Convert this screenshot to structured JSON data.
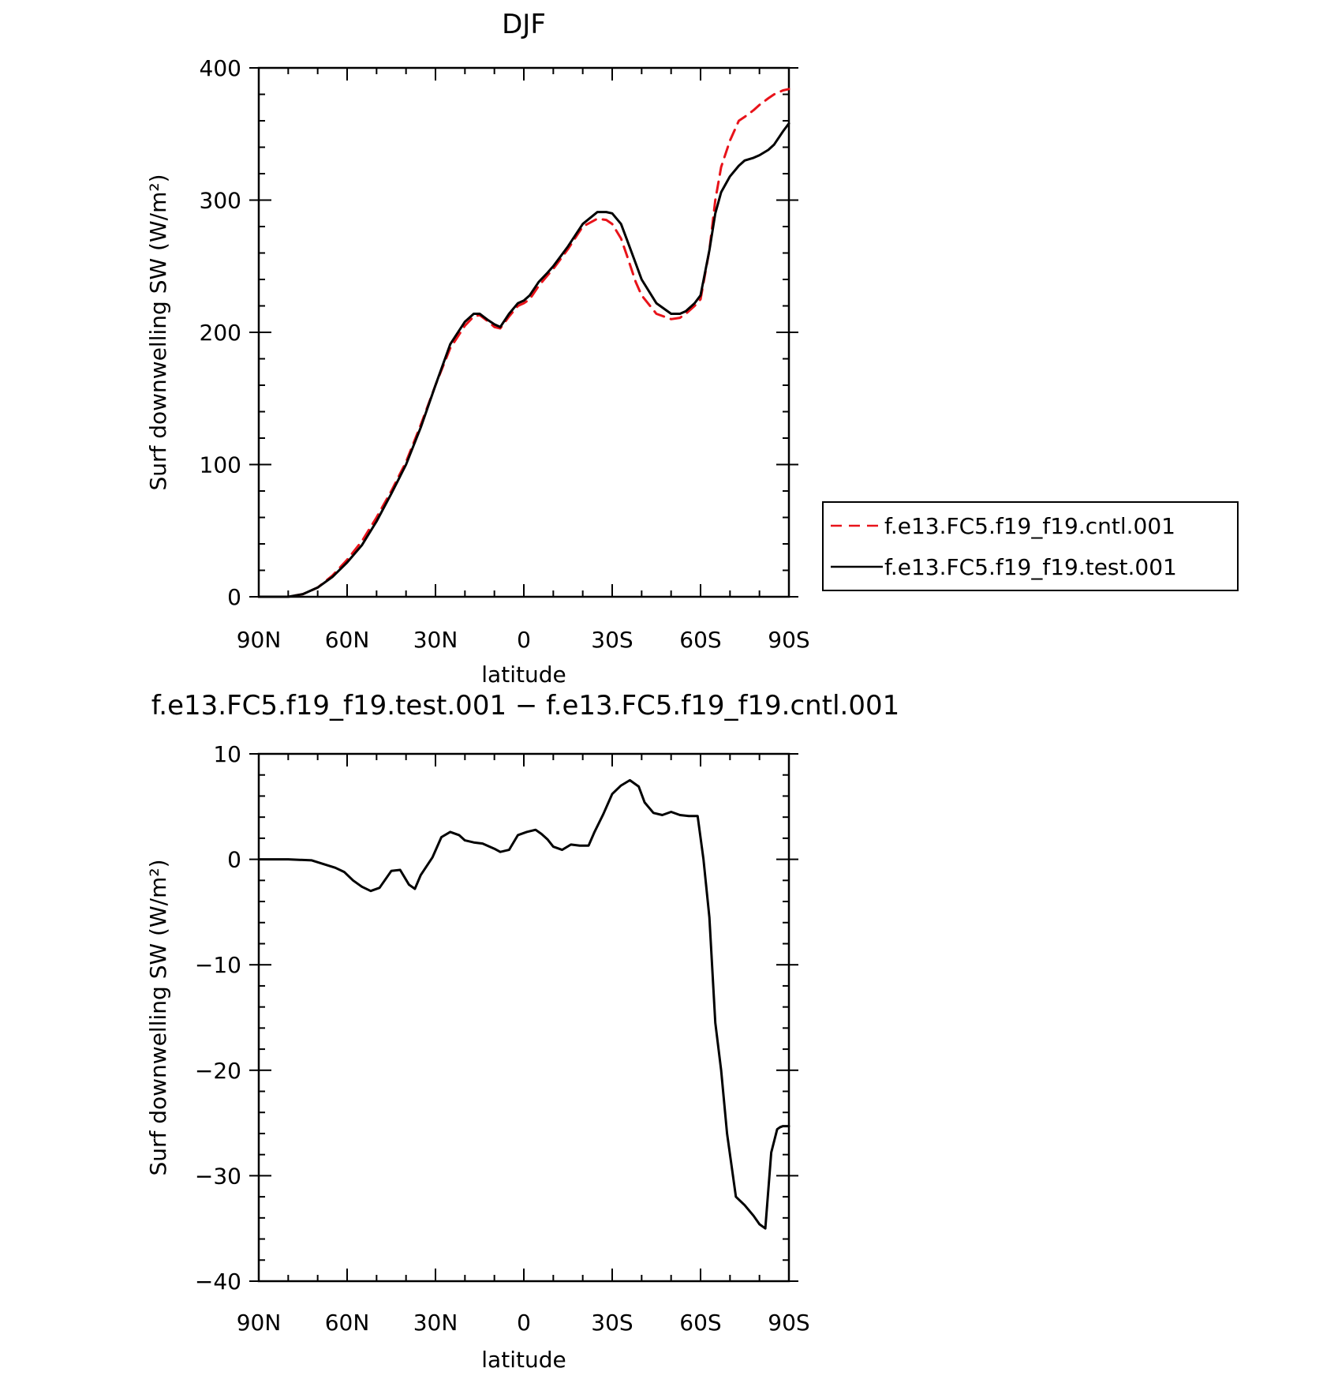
{
  "chart_data": [
    {
      "type": "line",
      "title": "DJF",
      "xlabel": "latitude",
      "ylabel": "Surf downwelling SW (W/m²)",
      "xlim": [
        90,
        -90
      ],
      "ylim": [
        0,
        400
      ],
      "x_tick_values": [
        90,
        60,
        30,
        0,
        -30,
        -60,
        -90
      ],
      "x_tick_labels": [
        "90N",
        "60N",
        "30N",
        "0",
        "30S",
        "60S",
        "90S"
      ],
      "y_tick_values": [
        0,
        100,
        200,
        300,
        400
      ],
      "y_tick_labels": [
        "0",
        "100",
        "200",
        "300",
        "400"
      ],
      "legend_position": "right",
      "series": [
        {
          "name": "f.e13.FC5.f19_f19.cntl.001",
          "color": "#e8131a",
          "style": "dashed",
          "x": [
            90,
            80,
            75,
            70,
            65,
            60,
            55,
            50,
            45,
            40,
            35,
            30,
            25,
            20,
            17,
            15,
            12,
            10,
            8,
            5,
            2,
            0,
            -2,
            -5,
            -8,
            -10,
            -15,
            -20,
            -25,
            -28,
            -30,
            -33,
            -35,
            -38,
            -40,
            -45,
            -50,
            -53,
            -55,
            -58,
            -60,
            -63,
            -65,
            -67,
            -70,
            -73,
            -75,
            -78,
            -80,
            -83,
            -85,
            -88,
            -90
          ],
          "values": [
            0,
            0,
            2,
            7,
            16,
            28,
            42,
            60,
            80,
            102,
            130,
            160,
            188,
            205,
            212,
            213,
            208,
            204,
            203,
            212,
            220,
            222,
            225,
            235,
            243,
            248,
            263,
            280,
            286,
            285,
            282,
            271,
            258,
            238,
            228,
            214,
            210,
            211,
            214,
            220,
            225,
            262,
            300,
            325,
            345,
            360,
            363,
            368,
            372,
            377,
            380,
            383,
            384
          ]
        },
        {
          "name": "f.e13.FC5.f19_f19.test.001",
          "color": "#000000",
          "style": "solid",
          "x": [
            90,
            80,
            75,
            70,
            65,
            60,
            55,
            50,
            45,
            40,
            35,
            30,
            25,
            20,
            17,
            15,
            12,
            10,
            8,
            5,
            2,
            0,
            -2,
            -5,
            -8,
            -10,
            -15,
            -20,
            -25,
            -28,
            -30,
            -33,
            -35,
            -38,
            -40,
            -45,
            -50,
            -53,
            -55,
            -58,
            -60,
            -63,
            -65,
            -67,
            -70,
            -73,
            -75,
            -78,
            -80,
            -83,
            -85,
            -88,
            -90
          ],
          "values": [
            0,
            0,
            2,
            7,
            15,
            26,
            39,
            57,
            78,
            100,
            128,
            160,
            191,
            208,
            214,
            214,
            209,
            206,
            204,
            214,
            222,
            224,
            228,
            238,
            245,
            250,
            265,
            282,
            291,
            291,
            290,
            282,
            270,
            252,
            240,
            222,
            214,
            214,
            216,
            222,
            228,
            262,
            290,
            306,
            318,
            326,
            330,
            332,
            334,
            338,
            342,
            352,
            358
          ]
        }
      ]
    },
    {
      "type": "line",
      "title": "f.e13.FC5.f19_f19.test.001 − f.e13.FC5.f19_f19.cntl.001",
      "xlabel": "latitude",
      "ylabel": "Surf downwelling SW (W/m²)",
      "xlim": [
        90,
        -90
      ],
      "ylim": [
        -40,
        10
      ],
      "x_tick_values": [
        90,
        60,
        30,
        0,
        -30,
        -60,
        -90
      ],
      "x_tick_labels": [
        "90N",
        "60N",
        "30N",
        "0",
        "30S",
        "60S",
        "90S"
      ],
      "y_tick_values": [
        10,
        0,
        -10,
        -20,
        -30,
        -40
      ],
      "y_tick_labels": [
        "10",
        "0",
        "−10",
        "−20",
        "−30",
        "−40"
      ],
      "series": [
        {
          "color": "#000000",
          "style": "solid",
          "x": [
            90,
            80,
            72,
            64,
            61,
            58,
            55,
            52,
            49,
            45,
            42,
            39,
            37,
            35,
            31,
            28,
            25,
            22,
            20,
            17,
            14,
            10,
            8,
            5,
            2,
            -1,
            -4,
            -6,
            -8,
            -10,
            -13,
            -16,
            -19,
            -22,
            -24,
            -27,
            -30,
            -33,
            -36,
            -39,
            -41,
            -44,
            -47,
            -50,
            -53,
            -56,
            -59,
            -61,
            -63,
            -65,
            -67,
            -69,
            -72,
            -75,
            -78,
            -80,
            -82,
            -84,
            -86,
            -87,
            -88,
            -90
          ],
          "values": [
            0,
            0,
            -0.1,
            -0.8,
            -1.2,
            -2.0,
            -2.6,
            -3.0,
            -2.7,
            -1.1,
            -1.0,
            -2.4,
            -2.8,
            -1.5,
            0.2,
            2.1,
            2.6,
            2.3,
            1.8,
            1.6,
            1.5,
            1.0,
            0.7,
            0.9,
            2.3,
            2.6,
            2.8,
            2.4,
            1.9,
            1.2,
            0.9,
            1.4,
            1.3,
            1.3,
            2.6,
            4.3,
            6.2,
            7.0,
            7.5,
            6.9,
            5.4,
            4.4,
            4.2,
            4.5,
            4.2,
            4.1,
            4.1,
            0,
            -5.5,
            -15.5,
            -20,
            -26,
            -32,
            -32.8,
            -33.8,
            -34.6,
            -35,
            -27.8,
            -25.6,
            -25.4,
            -25.3,
            -25.3
          ]
        }
      ]
    }
  ]
}
